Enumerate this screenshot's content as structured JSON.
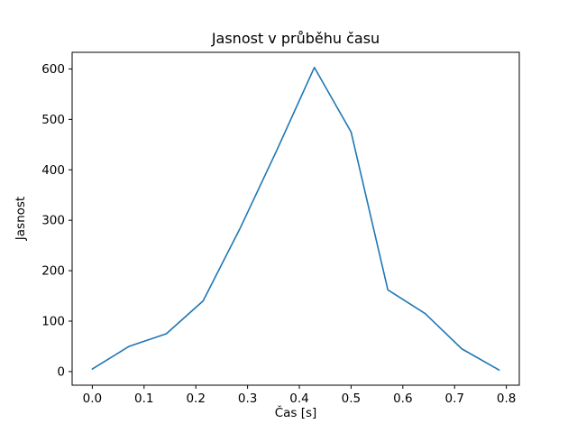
{
  "chart_data": {
    "type": "line",
    "title": "Jasnost v průběhu času",
    "xlabel": "Čas [s]",
    "ylabel": "Jasnost",
    "x": [
      0.0,
      0.071,
      0.143,
      0.214,
      0.286,
      0.357,
      0.429,
      0.5,
      0.571,
      0.643,
      0.714,
      0.786
    ],
    "y": [
      5,
      50,
      75,
      140,
      285,
      440,
      603,
      475,
      162,
      115,
      45,
      3
    ],
    "xlim": [
      -0.039,
      0.825
    ],
    "ylim": [
      -27,
      633
    ],
    "xticks": [
      0.0,
      0.1,
      0.2,
      0.3,
      0.4,
      0.5,
      0.6,
      0.7,
      0.8
    ],
    "xtick_labels": [
      "0.0",
      "0.1",
      "0.2",
      "0.3",
      "0.4",
      "0.5",
      "0.6",
      "0.7",
      "0.8"
    ],
    "yticks": [
      0,
      100,
      200,
      300,
      400,
      500,
      600
    ],
    "ytick_labels": [
      "0",
      "100",
      "200",
      "300",
      "400",
      "500",
      "600"
    ],
    "line_color": "#1f77b4",
    "grid": false,
    "legend_position": "none"
  }
}
